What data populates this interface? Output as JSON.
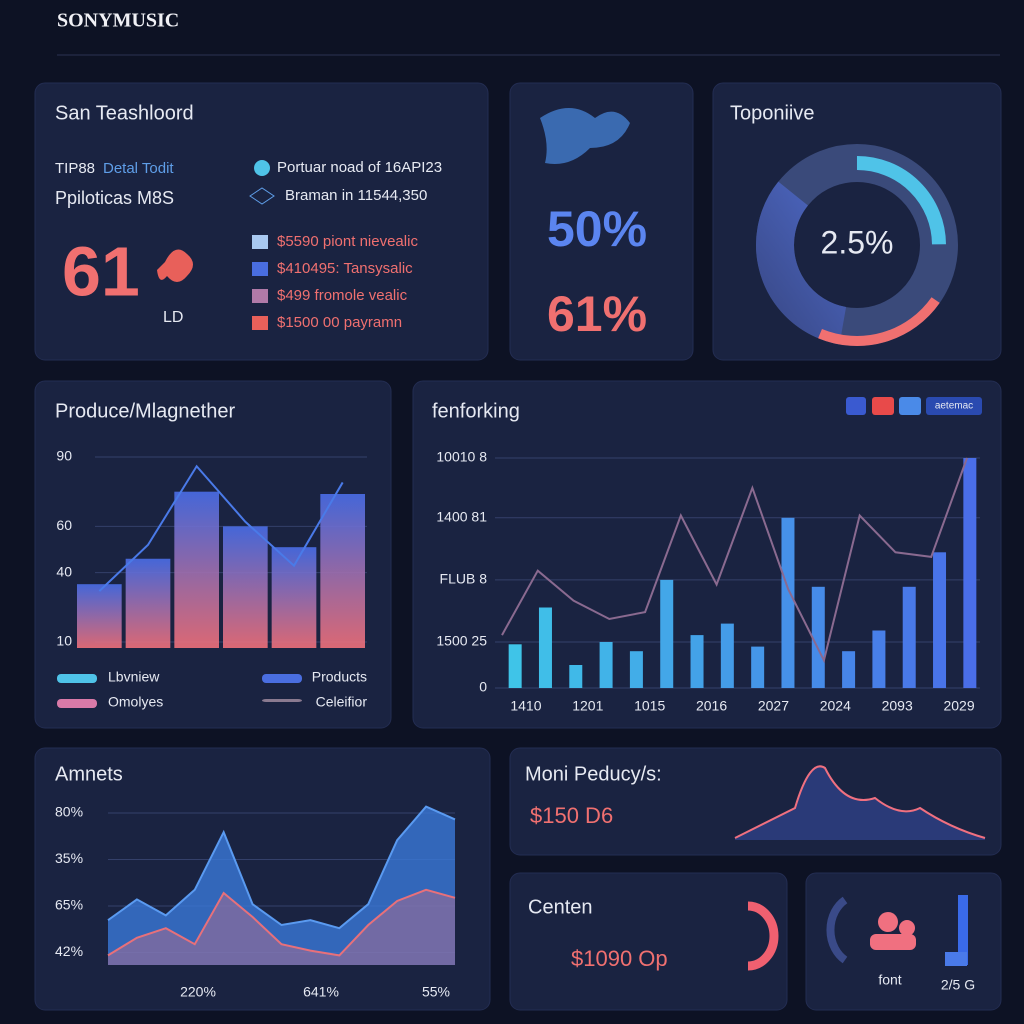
{
  "header": {
    "brand": "SONYMUSIC"
  },
  "summary": {
    "title": "San Teashloord",
    "tag": "TIP88",
    "tag_note": "Detal Todit",
    "subtitle": "Ppiloticas M8S",
    "big_value": "61",
    "big_unit": "LD",
    "notes": [
      "Portuar noad of 16API23",
      "Braman in 11544,350"
    ],
    "items": [
      {
        "label": "$5590 piont nievealic",
        "color": "#a8c8f0"
      },
      {
        "label": "$410495: Tansysalic",
        "color": "#4a6ee0"
      },
      {
        "label": "$499 fromole vealic",
        "color": "#b07aa8"
      },
      {
        "label": "$1500 00 payramn",
        "color": "#e8605a"
      }
    ]
  },
  "stats": {
    "primary": "50%",
    "secondary": "61%"
  },
  "donut": {
    "title": "Toponiive",
    "center": "2.5%"
  },
  "bar_chart": {
    "type": "bar",
    "title": "Produce/Mlagnether",
    "ylim": [
      10,
      90
    ],
    "yticks": [
      90,
      60,
      40,
      10
    ],
    "bars": [
      35,
      46,
      75,
      60,
      51,
      74
    ],
    "line": [
      32,
      52,
      86,
      62,
      43,
      79
    ],
    "legend": [
      {
        "name": "Lbvniew",
        "color": "#4fc3e8"
      },
      {
        "name": "Products",
        "color": "#4a6ee0"
      },
      {
        "name": "Omolyes",
        "color": "#d97aa8"
      },
      {
        "name": "Celeifior",
        "color": "#8a7a90"
      }
    ]
  },
  "performance": {
    "type": "bar",
    "title": "fenforking",
    "badge": "aetemac",
    "categories": [
      "1410",
      "1201",
      "1015",
      "2016",
      "2027",
      "2024",
      "2093",
      "2029"
    ],
    "ylim": [
      0,
      100
    ],
    "yticks": [
      {
        "value": 100,
        "label": "10010 8"
      },
      {
        "value": 74,
        "label": "1400 81"
      },
      {
        "value": 47,
        "label": "FLUB 8"
      },
      {
        "value": 20,
        "label": "1500 25"
      },
      0
    ],
    "bars": [
      19,
      35,
      10,
      20,
      16,
      47,
      23,
      28,
      18,
      74,
      44,
      16,
      25,
      44,
      59,
      100
    ],
    "line": [
      23,
      51,
      38,
      30,
      33,
      75,
      45,
      87,
      43,
      12,
      75,
      59,
      57,
      100
    ]
  },
  "area": {
    "type": "area",
    "title": "Amnets",
    "y_labels": [
      "80%",
      "35%",
      "65%",
      "42%"
    ],
    "x_labels": [
      "220%",
      "641%",
      "55%"
    ],
    "ylim": [
      0,
      100
    ],
    "series": [
      {
        "color": "#3a78d8",
        "values": [
          28,
          41,
          31,
          47,
          83,
          38,
          25,
          28,
          23,
          38,
          78,
          99,
          91
        ]
      },
      {
        "color": "#e8707a",
        "values": [
          6,
          17,
          23,
          13,
          45,
          30,
          13,
          9,
          6,
          25,
          40,
          47,
          42
        ]
      }
    ]
  },
  "products": {
    "title": "Moni Peducy/s:",
    "value": "$150 D6"
  },
  "content": {
    "title": "Centen",
    "value": "$1090 Op"
  },
  "people": {
    "label": "font",
    "value": "2/5 G"
  }
}
